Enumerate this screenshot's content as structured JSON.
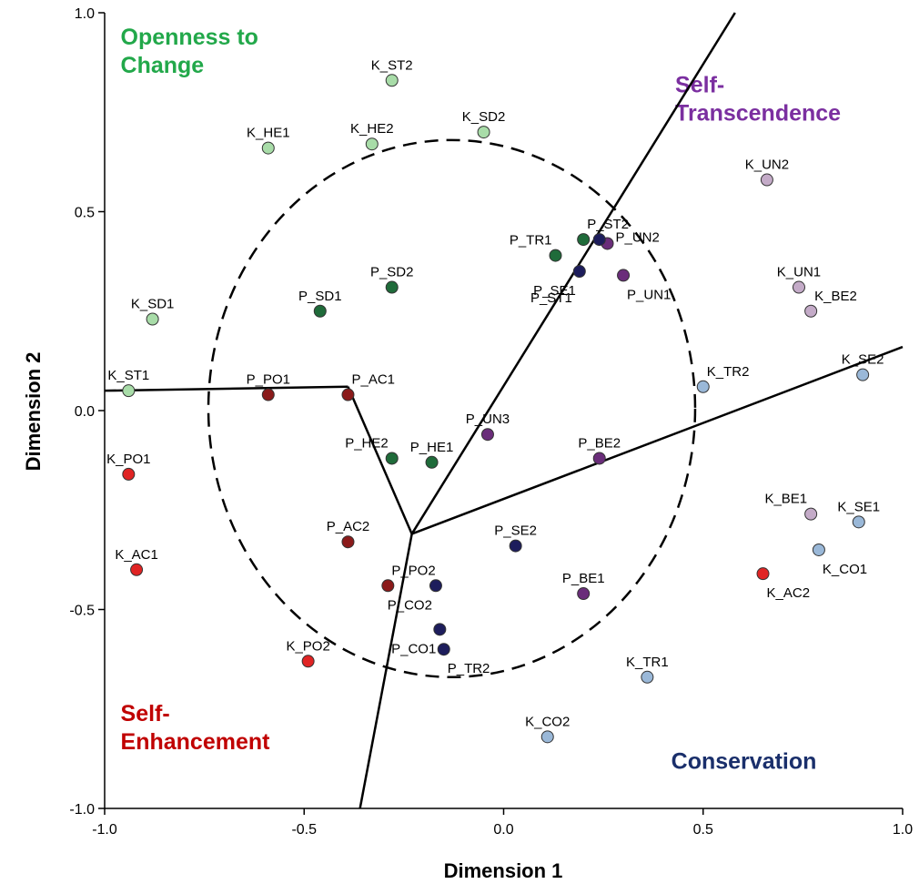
{
  "chart_data": {
    "type": "scatter",
    "title": "",
    "xlabel": "Dimension 1",
    "ylabel": "Dimension 2",
    "xlim": [
      -1.0,
      1.0
    ],
    "ylim": [
      -1.0,
      1.0
    ],
    "xticks": [
      "-1.0",
      "-0.5",
      "0.0",
      "0.5",
      "1.0"
    ],
    "yticks": [
      "1.0",
      "0.5",
      "0.0",
      "-0.5",
      "-1.0"
    ],
    "grid": false,
    "colors": {
      "openness_light": "#a8dca8",
      "openness_dark": "#1f6b3a",
      "self_enhancement_red": "#e02424",
      "self_enhancement_dark": "#8b1a1a",
      "self_transcendence_light": "#c4abc8",
      "self_transcendence_dark": "#6a2d7a",
      "conservation_light": "#9ab8d8",
      "conservation_dark": "#1d1d5c",
      "region_openness": "#22a84a",
      "region_self_transcendence": "#7b2fa0",
      "region_self_enhancement": "#c00000",
      "region_conservation": "#1a2f6b"
    },
    "points": [
      {
        "label": "K_ST2",
        "x": -0.28,
        "y": 0.83,
        "color": "#a8dca8",
        "lp": "above"
      },
      {
        "label": "K_HE1",
        "x": -0.59,
        "y": 0.66,
        "color": "#a8dca8",
        "lp": "above"
      },
      {
        "label": "K_HE2",
        "x": -0.33,
        "y": 0.67,
        "color": "#a8dca8",
        "lp": "above"
      },
      {
        "label": "K_SD2",
        "x": -0.05,
        "y": 0.7,
        "color": "#a8dca8",
        "lp": "above"
      },
      {
        "label": "K_SD1",
        "x": -0.88,
        "y": 0.23,
        "color": "#a8dca8",
        "lp": "above"
      },
      {
        "label": "K_ST1",
        "x": -0.94,
        "y": 0.05,
        "color": "#a8dca8",
        "lp": "above"
      },
      {
        "label": "P_SD2",
        "x": -0.28,
        "y": 0.31,
        "color": "#1f6b3a",
        "lp": "above"
      },
      {
        "label": "P_SD1",
        "x": -0.46,
        "y": 0.25,
        "color": "#1f6b3a",
        "lp": "above"
      },
      {
        "label": "P_TR1",
        "x": 0.13,
        "y": 0.39,
        "color": "#1f6b3a",
        "lp": "aboveleft"
      },
      {
        "label": "P_ST2",
        "x": 0.2,
        "y": 0.43,
        "color": "#1f6b3a",
        "lp": "aboveright"
      },
      {
        "label": "P_HE2",
        "x": -0.28,
        "y": -0.12,
        "color": "#1f6b3a",
        "lp": "aboveleft"
      },
      {
        "label": "P_HE1",
        "x": -0.18,
        "y": -0.13,
        "color": "#1f6b3a",
        "lp": "above"
      },
      {
        "label": "P_UN2",
        "x": 0.26,
        "y": 0.42,
        "color": "#6a2d7a",
        "lp": "right"
      },
      {
        "label": "P_UN1",
        "x": 0.3,
        "y": 0.34,
        "color": "#6a2d7a",
        "lp": "belowright"
      },
      {
        "label": "P_UN3",
        "x": -0.04,
        "y": -0.06,
        "color": "#6a2d7a",
        "lp": "above"
      },
      {
        "label": "P_BE2",
        "x": 0.24,
        "y": -0.12,
        "color": "#6a2d7a",
        "lp": "above"
      },
      {
        "label": "P_BE1",
        "x": 0.2,
        "y": -0.46,
        "color": "#6a2d7a",
        "lp": "above"
      },
      {
        "label": "K_UN2",
        "x": 0.66,
        "y": 0.58,
        "color": "#c4abc8",
        "lp": "above"
      },
      {
        "label": "K_UN1",
        "x": 0.74,
        "y": 0.31,
        "color": "#c4abc8",
        "lp": "above"
      },
      {
        "label": "K_BE2",
        "x": 0.77,
        "y": 0.25,
        "color": "#c4abc8",
        "lp": "aboveright"
      },
      {
        "label": "K_BE1",
        "x": 0.77,
        "y": -0.26,
        "color": "#c4abc8",
        "lp": "aboveleft"
      },
      {
        "label": "P_ST1",
        "x": 0.24,
        "y": 0.43,
        "color": "#1d1d5c",
        "lp": "none"
      },
      {
        "label": "P_SE1",
        "x": 0.19,
        "y": 0.35,
        "color": "#1d1d5c",
        "lp": "belowleft"
      },
      {
        "label": "P_SE2",
        "x": 0.03,
        "y": -0.34,
        "color": "#1d1d5c",
        "lp": "above"
      },
      {
        "label": "P_CO2",
        "x": -0.17,
        "y": -0.44,
        "color": "#1d1d5c",
        "lp": "belowleft"
      },
      {
        "label": "P_CO1",
        "x": -0.16,
        "y": -0.55,
        "color": "#1d1d5c",
        "lp": "belowleft"
      },
      {
        "label": "P_TR2",
        "x": -0.15,
        "y": -0.6,
        "color": "#1d1d5c",
        "lp": "belowright"
      },
      {
        "label": "K_TR2",
        "x": 0.5,
        "y": 0.06,
        "color": "#9ab8d8",
        "lp": "aboveright"
      },
      {
        "label": "K_SE2",
        "x": 0.9,
        "y": 0.09,
        "color": "#9ab8d8",
        "lp": "above"
      },
      {
        "label": "K_SE1",
        "x": 0.89,
        "y": -0.28,
        "color": "#9ab8d8",
        "lp": "above"
      },
      {
        "label": "K_CO1",
        "x": 0.79,
        "y": -0.35,
        "color": "#9ab8d8",
        "lp": "belowright"
      },
      {
        "label": "K_TR1",
        "x": 0.36,
        "y": -0.67,
        "color": "#9ab8d8",
        "lp": "above"
      },
      {
        "label": "K_CO2",
        "x": 0.11,
        "y": -0.82,
        "color": "#9ab8d8",
        "lp": "above"
      },
      {
        "label": "P_PO1",
        "x": -0.59,
        "y": 0.04,
        "color": "#8b1a1a",
        "lp": "above"
      },
      {
        "label": "P_AC1",
        "x": -0.39,
        "y": 0.04,
        "color": "#8b1a1a",
        "lp": "aboveright"
      },
      {
        "label": "P_AC2",
        "x": -0.39,
        "y": -0.33,
        "color": "#8b1a1a",
        "lp": "above"
      },
      {
        "label": "P_PO2",
        "x": -0.29,
        "y": -0.44,
        "color": "#8b1a1a",
        "lp": "aboveright"
      },
      {
        "label": "K_PO1",
        "x": -0.94,
        "y": -0.16,
        "color": "#e02424",
        "lp": "above"
      },
      {
        "label": "K_AC1",
        "x": -0.92,
        "y": -0.4,
        "color": "#e02424",
        "lp": "above"
      },
      {
        "label": "K_PO2",
        "x": -0.49,
        "y": -0.63,
        "color": "#e02424",
        "lp": "above"
      },
      {
        "label": "K_AC2",
        "x": 0.65,
        "y": -0.41,
        "color": "#e02424",
        "lp": "belowright"
      }
    ],
    "ellipse": {
      "cx": -0.13,
      "cy": 0.005,
      "rx": 0.61,
      "ry": 0.675
    },
    "dividers": [
      {
        "x1": -0.23,
        "y1": -0.31,
        "x2": -0.39,
        "y2": 0.06
      },
      {
        "x1": -0.39,
        "y1": 0.06,
        "x2": -1.0,
        "y2": 0.05
      },
      {
        "x1": -0.23,
        "y1": -0.31,
        "x2": 0.58,
        "y2": 1.0
      },
      {
        "x1": -0.23,
        "y1": -0.31,
        "x2": 1.0,
        "y2": 0.16
      },
      {
        "x1": -0.23,
        "y1": -0.31,
        "x2": -0.36,
        "y2": -1.0
      }
    ],
    "regions": [
      {
        "name": "openness",
        "lines": [
          "Openness to",
          "Change"
        ],
        "color": "#22a84a",
        "x": -0.96,
        "y": 0.92
      },
      {
        "name": "self-transcendence",
        "lines": [
          "Self-",
          "Transcendence"
        ],
        "color": "#7b2fa0",
        "x": 0.43,
        "y": 0.8
      },
      {
        "name": "self-enhancement",
        "lines": [
          "Self-",
          "Enhancement"
        ],
        "color": "#c00000",
        "x": -0.96,
        "y": -0.78
      },
      {
        "name": "conservation",
        "lines": [
          "Conservation"
        ],
        "color": "#1a2f6b",
        "x": 0.42,
        "y": -0.9
      }
    ]
  }
}
